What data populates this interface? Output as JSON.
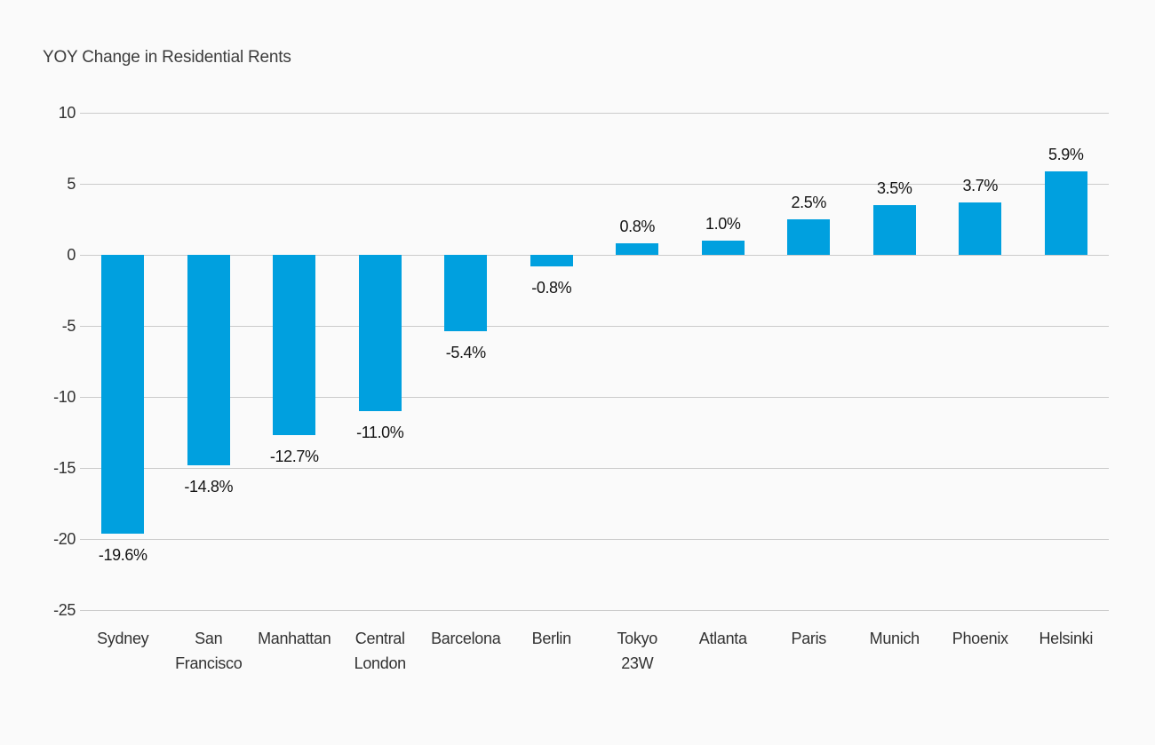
{
  "title": "YOY Change in Residential Rents",
  "chart_data": {
    "type": "bar",
    "title": "YOY Change in Residential Rents",
    "categories": [
      "Sydney",
      "San Francisco",
      "Manhattan",
      "Central London",
      "Barcelona",
      "Berlin",
      "Tokyo 23W",
      "Atlanta",
      "Paris",
      "Munich",
      "Phoenix",
      "Helsinki"
    ],
    "category_lines": [
      [
        "Sydney"
      ],
      [
        "San",
        "Francisco"
      ],
      [
        "Manhattan"
      ],
      [
        "Central",
        "London"
      ],
      [
        "Barcelona"
      ],
      [
        "Berlin"
      ],
      [
        "Tokyo",
        "23W"
      ],
      [
        "Atlanta"
      ],
      [
        "Paris"
      ],
      [
        "Munich"
      ],
      [
        "Phoenix"
      ],
      [
        "Helsinki"
      ]
    ],
    "values": [
      -19.6,
      -14.8,
      -12.7,
      -11.0,
      -5.4,
      -0.8,
      0.8,
      1.0,
      2.5,
      3.5,
      3.7,
      5.9
    ],
    "value_labels": [
      "-19.6%",
      "-14.8%",
      "-12.7%",
      "-11.0%",
      "-5.4%",
      "-0.8%",
      "0.8%",
      "1.0%",
      "2.5%",
      "3.5%",
      "3.7%",
      "5.9%"
    ],
    "xlabel": "",
    "ylabel": "",
    "y_ticks": [
      10,
      5,
      0,
      -5,
      -10,
      -15,
      -20,
      -25
    ],
    "ylim": [
      -25,
      10
    ],
    "grid": true,
    "legend": false,
    "colors": {
      "bar": "#00a0df",
      "background": "#fafafa",
      "gridline": "#cbcbcb",
      "value_label": "#141414",
      "axis_text": "#323232",
      "title_text": "#3d3d3d"
    }
  }
}
